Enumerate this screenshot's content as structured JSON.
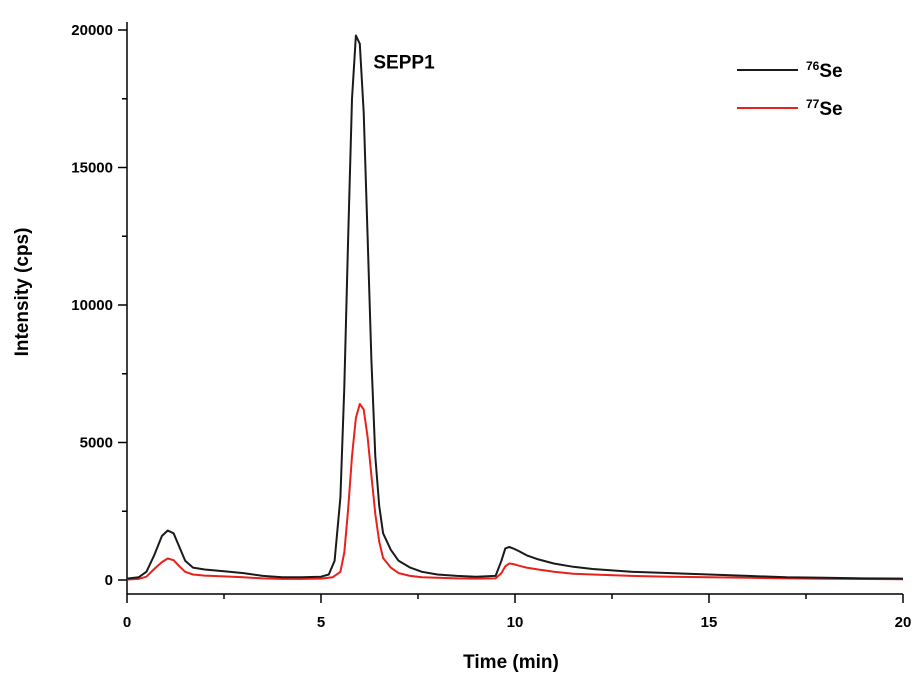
{
  "chart_data": {
    "type": "line",
    "xlabel": "Time (min)",
    "ylabel": "Intensity (cps)",
    "xlim": [
      0,
      20
    ],
    "ylim": [
      -500,
      20000
    ],
    "x_ticks": [
      0,
      5,
      10,
      15,
      20
    ],
    "y_ticks": [
      0,
      5000,
      10000,
      15000,
      20000
    ],
    "grid": false,
    "legend_position": "top-right",
    "annotations": [
      {
        "text": "SEPP1",
        "x": 6.35,
        "y": 18600
      }
    ],
    "series": [
      {
        "name": "76Se",
        "isotope": "76",
        "element": "Se",
        "color": "#1a1a1a",
        "x": [
          0,
          0.3,
          0.5,
          0.7,
          0.9,
          1.05,
          1.2,
          1.35,
          1.5,
          1.7,
          2.0,
          2.5,
          3.0,
          3.5,
          4.0,
          4.5,
          5.0,
          5.2,
          5.35,
          5.5,
          5.6,
          5.7,
          5.8,
          5.9,
          6.0,
          6.1,
          6.2,
          6.3,
          6.4,
          6.5,
          6.6,
          6.8,
          7.0,
          7.3,
          7.6,
          8.0,
          8.5,
          9.0,
          9.5,
          9.65,
          9.75,
          9.85,
          9.95,
          10.1,
          10.3,
          10.6,
          11.0,
          11.5,
          12.0,
          13.0,
          14.0,
          15.0,
          16.0,
          17.0,
          18.0,
          19.0,
          20.0
        ],
        "y": [
          50,
          100,
          300,
          900,
          1600,
          1800,
          1700,
          1200,
          700,
          450,
          380,
          320,
          250,
          150,
          100,
          100,
          120,
          200,
          700,
          3000,
          7000,
          12500,
          17500,
          19800,
          19500,
          17000,
          12500,
          8000,
          4500,
          2700,
          1700,
          1100,
          700,
          450,
          300,
          200,
          150,
          120,
          150,
          700,
          1150,
          1200,
          1150,
          1050,
          900,
          750,
          600,
          480,
          400,
          300,
          250,
          200,
          150,
          100,
          80,
          60,
          50
        ]
      },
      {
        "name": "77Se",
        "isotope": "77",
        "element": "Se",
        "color": "#e8211d",
        "x": [
          0,
          0.3,
          0.5,
          0.7,
          0.9,
          1.05,
          1.2,
          1.35,
          1.5,
          1.7,
          2.0,
          2.5,
          3.0,
          3.5,
          4.0,
          4.5,
          5.0,
          5.3,
          5.5,
          5.6,
          5.7,
          5.8,
          5.9,
          6.0,
          6.1,
          6.2,
          6.3,
          6.4,
          6.5,
          6.6,
          6.8,
          7.0,
          7.3,
          7.6,
          8.0,
          8.5,
          9.0,
          9.5,
          9.65,
          9.75,
          9.85,
          9.95,
          10.1,
          10.3,
          10.6,
          11.0,
          11.5,
          12.0,
          13.0,
          14.0,
          15.0,
          16.0,
          17.0,
          18.0,
          19.0,
          20.0
        ],
        "y": [
          20,
          40,
          120,
          400,
          650,
          780,
          720,
          500,
          300,
          200,
          160,
          130,
          100,
          60,
          40,
          40,
          50,
          100,
          300,
          1000,
          2600,
          4500,
          5900,
          6400,
          6200,
          5200,
          3800,
          2400,
          1400,
          800,
          450,
          250,
          150,
          100,
          80,
          60,
          50,
          60,
          250,
          500,
          600,
          580,
          520,
          450,
          380,
          300,
          230,
          200,
          150,
          120,
          100,
          80,
          60,
          45,
          35,
          30
        ]
      }
    ]
  }
}
